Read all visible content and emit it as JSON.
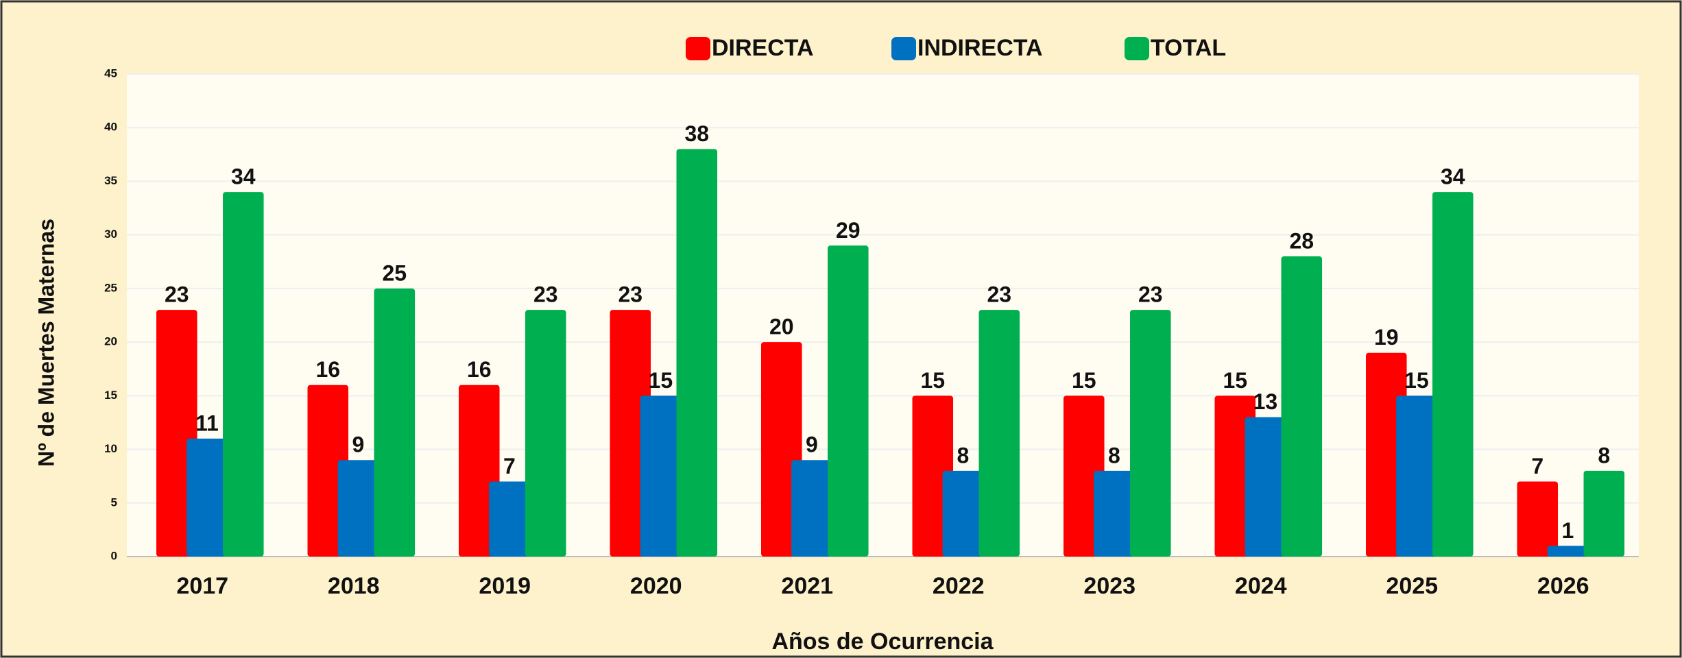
{
  "chart_data": {
    "type": "bar",
    "x_label": "Años de Ocurrencia",
    "y_label": "Nº de Muertes Maternas",
    "categories": [
      "2017",
      "2018",
      "2019",
      "2020",
      "2021",
      "2022",
      "2023",
      "2024",
      "2025",
      "2026"
    ],
    "series": [
      {
        "name": "DIRECTA",
        "color": "#ff0000",
        "values": [
          23,
          16,
          16,
          23,
          20,
          15,
          15,
          15,
          19,
          7
        ]
      },
      {
        "name": "INDIRECTA",
        "color": "#0070c0",
        "values": [
          11,
          9,
          7,
          15,
          9,
          8,
          8,
          13,
          15,
          1
        ]
      },
      {
        "name": "TOTAL",
        "color": "#00b050",
        "values": [
          34,
          25,
          23,
          38,
          29,
          23,
          23,
          28,
          34,
          8
        ]
      }
    ],
    "ylim": [
      0,
      45
    ],
    "yticks": [
      0,
      5,
      10,
      15,
      20,
      25,
      30,
      35,
      40,
      45
    ],
    "grid": true,
    "legend": "top"
  }
}
